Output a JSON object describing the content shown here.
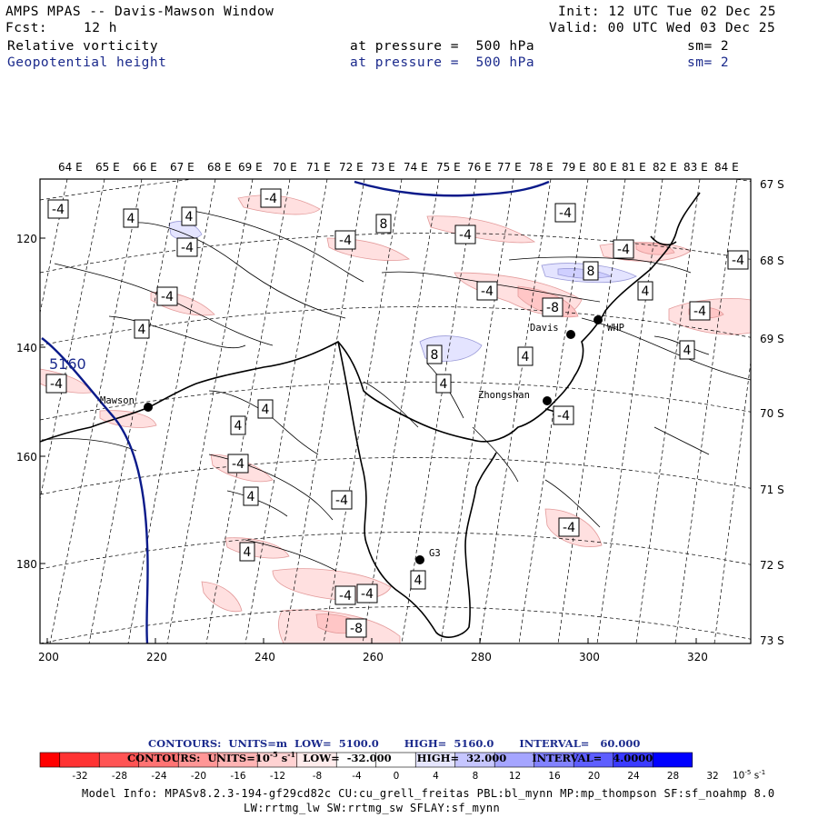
{
  "header": {
    "title": "AMPS MPAS -- Davis-Mawson Window",
    "init": "Init: 12 UTC Tue 02 Dec 25",
    "forecast_label": "Fcst:",
    "forecast_value": "12 h",
    "valid": "Valid: 00 UTC Wed 03 Dec 25",
    "fields": [
      {
        "name": "Relative vorticity",
        "pressure": "at pressure =  500 hPa",
        "sm": "sm= 2"
      },
      {
        "name": "Geopotential height",
        "pressure": "at pressure =  500 hPa",
        "sm": "sm= 2"
      }
    ]
  },
  "map": {
    "longitudes": [
      "64 E",
      "65 E",
      "66 E",
      "67 E",
      "68 E",
      "69 E",
      "70 E",
      "71 E",
      "72 E",
      "73 E",
      "74 E",
      "75 E",
      "76 E",
      "77 E",
      "78 E",
      "79 E",
      "80 E",
      "81 E",
      "82 E",
      "83 E",
      "84 E"
    ],
    "latitudes": [
      "67 S",
      "68 S",
      "69 S",
      "70 S",
      "71 S",
      "72 S",
      "73 S"
    ],
    "x_ticks": [
      "200",
      "220",
      "240",
      "260",
      "280",
      "300",
      "320"
    ],
    "y_ticks": [
      "120",
      "140",
      "160",
      "180"
    ],
    "stations": [
      "Mawson",
      "Davis",
      "WHP",
      "Zhongshan",
      "G3"
    ],
    "height_contour_label": "5160",
    "vorticity_labels": [
      "-4",
      "4",
      "4",
      "-4",
      "-4",
      "8",
      "-4",
      "-4",
      "-4",
      "-4",
      "-4",
      "-4",
      "-4",
      "4",
      "8",
      "-8",
      "4",
      "-4",
      "4",
      "4",
      "8",
      "4",
      "-4",
      "4",
      "4",
      "-4",
      "4",
      "-4",
      "4",
      "-4",
      "-4",
      "4",
      "-4",
      "-8",
      "-4"
    ]
  },
  "contour_info": {
    "line1": {
      "label": "CONTOURS:  UNITS=m",
      "low": "LOW=  5100.0",
      "high": "HIGH=  5160.0",
      "interval": "INTERVAL=   60.000"
    },
    "line2": {
      "label": "CONTOURS:  UNITS=10",
      "exp": "-5",
      "unit": " s",
      "unit_exp": "-1",
      "low": "LOW=  -32.000",
      "high": "HIGH=  32.000",
      "interval": "INTERVAL=   4.0000"
    }
  },
  "colorbar": {
    "ticks": [
      "-32",
      "-28",
      "-24",
      "-20",
      "-16",
      "-12",
      "-8",
      "-4",
      "0",
      "4",
      "8",
      "12",
      "16",
      "20",
      "24",
      "28",
      "32"
    ],
    "unit": "10",
    "unit_exp": "-5",
    "unit_s": " s",
    "unit_s_exp": "-1",
    "colors": [
      "#ff0000",
      "#ff3333",
      "#ff5454",
      "#ff7373",
      "#ff9696",
      "#ffb4b4",
      "#ffd2d2",
      "#ffecec",
      "#ffffff",
      "#ffffff",
      "#e6e6ff",
      "#c6c6ff",
      "#a5a5ff",
      "#8282ff",
      "#5e5eff",
      "#3a3aff",
      "#0000ff"
    ]
  },
  "model_info": {
    "line1": "Model Info: MPASv8.2.3-194-gf29cd82c CU:cu_grell_freitas PBL:bl_mynn MP:mp_thompson SF:sf_noahmp 8.0",
    "line2": "LW:rrtmg_lw SW:rrtmg_sw SFLAY:sf_mynn"
  }
}
